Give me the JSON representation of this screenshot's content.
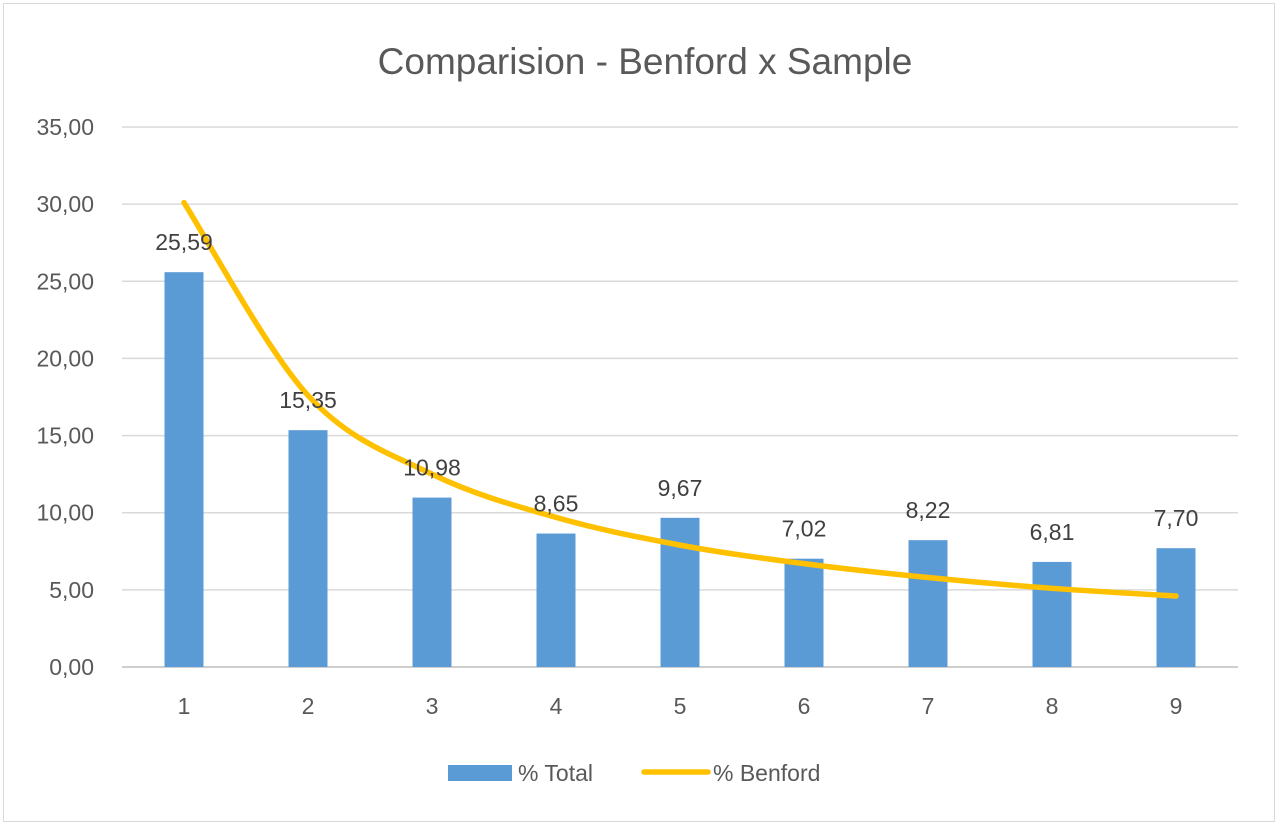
{
  "chart_data": {
    "type": "bar",
    "title": "Comparision - Benford x Sample",
    "categories": [
      "1",
      "2",
      "3",
      "4",
      "5",
      "6",
      "7",
      "8",
      "9"
    ],
    "yticks": [
      "0,00",
      "5,00",
      "10,00",
      "15,00",
      "20,00",
      "25,00",
      "30,00",
      "35,00"
    ],
    "ylim": [
      0,
      35
    ],
    "grid": true,
    "legend_position": "bottom",
    "series": [
      {
        "name": "% Total",
        "kind": "bar",
        "color": "#5b9bd5",
        "values": [
          25.59,
          15.35,
          10.98,
          8.65,
          9.67,
          7.02,
          8.22,
          6.81,
          7.7
        ],
        "labels": [
          "25,59",
          "15,35",
          "10,98",
          "8,65",
          "9,67",
          "7,02",
          "8,22",
          "6,81",
          "7,70"
        ]
      },
      {
        "name": "% Benford",
        "kind": "line",
        "color": "#ffc000",
        "values": [
          30.1,
          17.6,
          12.5,
          9.7,
          7.9,
          6.7,
          5.8,
          5.1,
          4.6
        ]
      }
    ]
  }
}
